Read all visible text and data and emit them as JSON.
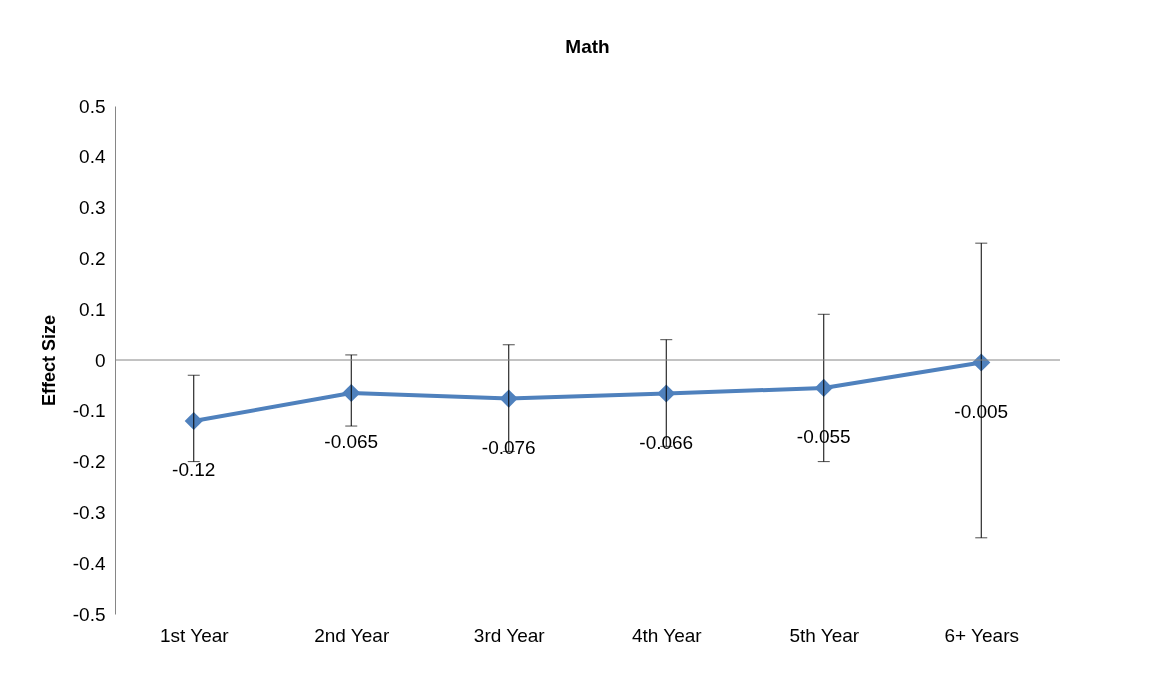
{
  "chart_data": {
    "type": "line",
    "title": "Math",
    "ylabel": "Effect Size",
    "categories": [
      "1st Year",
      "2nd Year",
      "3rd Year",
      "4th Year",
      "5th Year",
      "6+ Years"
    ],
    "values": [
      -0.12,
      -0.065,
      -0.076,
      -0.066,
      -0.055,
      -0.005
    ],
    "errors": [
      [
        -0.2,
        -0.03
      ],
      [
        -0.13,
        0.01
      ],
      [
        -0.18,
        0.03
      ],
      [
        -0.17,
        0.04
      ],
      [
        -0.2,
        0.09
      ],
      [
        -0.35,
        0.23
      ]
    ],
    "color": "#4f81bd",
    "marker": "diamond",
    "line_style": "solid",
    "data_labels": true,
    "ylim": [
      -0.5,
      0.5
    ],
    "yticks": [
      -0.5,
      -0.4,
      -0.3,
      -0.2,
      -0.1,
      0,
      0.1,
      0.2,
      0.3,
      0.4,
      0.5
    ],
    "ref_lines": [
      {
        "axis": "y",
        "value": 0,
        "color": "#868686"
      }
    ],
    "grid": false
  }
}
